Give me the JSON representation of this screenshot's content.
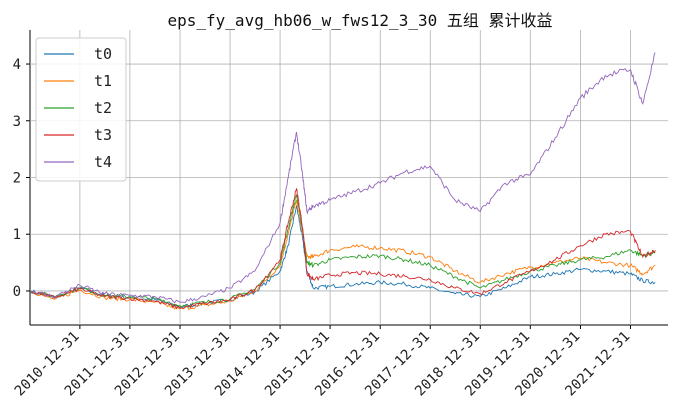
{
  "chart_data": {
    "type": "line",
    "title": "eps_fy_avg_hb06_w_fws12_3_30 五组 累计收益",
    "xlabel": "",
    "ylabel": "",
    "x_ticks": [
      "2010-12-31",
      "2011-12-31",
      "2012-12-31",
      "2013-12-31",
      "2014-12-31",
      "2015-12-31",
      "2016-12-31",
      "2017-12-31",
      "2018-12-31",
      "2019-12-31",
      "2020-12-31",
      "2021-12-31"
    ],
    "y_ticks": [
      0,
      1,
      2,
      3,
      4
    ],
    "xlim": [
      "2010-01-01",
      "2022-10-01"
    ],
    "ylim": [
      -0.6,
      4.6
    ],
    "grid": true,
    "legend_position": "top-left",
    "series": [
      {
        "name": "t0",
        "color": "#1f77b4",
        "x": [
          "2010-01-04",
          "2010-06-30",
          "2010-12-31",
          "2011-06-30",
          "2011-12-31",
          "2012-06-30",
          "2012-12-31",
          "2013-06-30",
          "2013-12-31",
          "2014-06-30",
          "2014-12-31",
          "2015-02-28",
          "2015-04-30",
          "2015-06-15",
          "2015-07-15",
          "2015-08-31",
          "2015-12-31",
          "2016-06-30",
          "2016-12-31",
          "2017-06-30",
          "2017-12-31",
          "2018-06-30",
          "2018-12-31",
          "2019-06-30",
          "2019-12-31",
          "2020-06-30",
          "2020-12-31",
          "2021-06-30",
          "2021-12-31",
          "2022-03-31",
          "2022-06-30"
        ],
        "values": [
          0.0,
          -0.12,
          0.05,
          -0.08,
          -0.12,
          -0.15,
          -0.28,
          -0.22,
          -0.15,
          -0.02,
          0.35,
          0.8,
          1.5,
          0.9,
          0.35,
          0.05,
          0.08,
          0.12,
          0.15,
          0.12,
          0.05,
          -0.05,
          -0.1,
          0.05,
          0.25,
          0.3,
          0.38,
          0.35,
          0.3,
          0.18,
          0.15
        ]
      },
      {
        "name": "t1",
        "color": "#ff7f0e",
        "x": [
          "2010-01-04",
          "2010-06-30",
          "2010-12-31",
          "2011-06-30",
          "2011-12-31",
          "2012-06-30",
          "2012-12-31",
          "2013-06-30",
          "2013-12-31",
          "2014-06-30",
          "2014-12-31",
          "2015-02-28",
          "2015-04-30",
          "2015-06-15",
          "2015-07-15",
          "2015-08-31",
          "2015-12-31",
          "2016-06-30",
          "2016-12-31",
          "2017-06-30",
          "2017-12-31",
          "2018-06-30",
          "2018-12-31",
          "2019-06-30",
          "2019-12-31",
          "2020-06-30",
          "2020-12-31",
          "2021-06-30",
          "2021-12-31",
          "2022-03-31",
          "2022-06-30"
        ],
        "values": [
          0.0,
          -0.15,
          0.02,
          -0.12,
          -0.15,
          -0.2,
          -0.32,
          -0.25,
          -0.18,
          0.0,
          0.45,
          1.0,
          1.6,
          1.0,
          0.6,
          0.6,
          0.72,
          0.78,
          0.76,
          0.7,
          0.6,
          0.35,
          0.15,
          0.3,
          0.42,
          0.5,
          0.58,
          0.5,
          0.45,
          0.3,
          0.45
        ]
      },
      {
        "name": "t2",
        "color": "#2ca02c",
        "x": [
          "2010-01-04",
          "2010-06-30",
          "2010-12-31",
          "2011-06-30",
          "2011-12-31",
          "2012-06-30",
          "2012-12-31",
          "2013-06-30",
          "2013-12-31",
          "2014-06-30",
          "2014-12-31",
          "2015-02-28",
          "2015-04-30",
          "2015-06-15",
          "2015-07-15",
          "2015-08-31",
          "2015-12-31",
          "2016-06-30",
          "2016-12-31",
          "2017-06-30",
          "2017-12-31",
          "2018-06-30",
          "2018-12-31",
          "2019-06-30",
          "2019-12-31",
          "2020-06-30",
          "2020-12-31",
          "2021-06-30",
          "2021-12-31",
          "2022-03-31",
          "2022-06-30"
        ],
        "values": [
          0.0,
          -0.1,
          0.06,
          -0.08,
          -0.1,
          -0.14,
          -0.26,
          -0.2,
          -0.14,
          0.03,
          0.5,
          1.1,
          1.7,
          1.05,
          0.5,
          0.45,
          0.55,
          0.6,
          0.62,
          0.55,
          0.45,
          0.25,
          0.05,
          0.2,
          0.35,
          0.45,
          0.55,
          0.6,
          0.72,
          0.62,
          0.68
        ]
      },
      {
        "name": "t3",
        "color": "#d62728",
        "x": [
          "2010-01-04",
          "2010-06-30",
          "2010-12-31",
          "2011-06-30",
          "2011-12-31",
          "2012-06-30",
          "2012-12-31",
          "2013-06-30",
          "2013-12-31",
          "2014-06-30",
          "2014-12-31",
          "2015-02-28",
          "2015-04-30",
          "2015-06-15",
          "2015-07-15",
          "2015-08-31",
          "2015-12-31",
          "2016-06-30",
          "2016-12-31",
          "2017-06-30",
          "2017-12-31",
          "2018-06-30",
          "2018-12-31",
          "2019-06-30",
          "2019-12-31",
          "2020-06-30",
          "2020-12-31",
          "2021-06-30",
          "2021-12-31",
          "2022-03-31",
          "2022-06-30"
        ],
        "values": [
          0.0,
          -0.12,
          0.04,
          -0.1,
          -0.13,
          -0.18,
          -0.3,
          -0.22,
          -0.16,
          0.02,
          0.55,
          1.2,
          1.8,
          1.1,
          0.3,
          0.2,
          0.28,
          0.32,
          0.3,
          0.26,
          0.2,
          0.05,
          -0.05,
          0.15,
          0.35,
          0.55,
          0.8,
          1.0,
          1.05,
          0.6,
          0.72
        ]
      },
      {
        "name": "t4",
        "color": "#9467bd",
        "x": [
          "2010-01-04",
          "2010-06-30",
          "2010-12-31",
          "2011-06-30",
          "2011-12-31",
          "2012-06-30",
          "2012-12-31",
          "2013-06-30",
          "2013-12-31",
          "2014-06-30",
          "2014-12-31",
          "2015-02-28",
          "2015-04-30",
          "2015-06-15",
          "2015-07-15",
          "2015-08-31",
          "2015-12-31",
          "2016-06-30",
          "2016-12-31",
          "2017-06-30",
          "2017-12-31",
          "2018-06-30",
          "2018-12-31",
          "2019-06-30",
          "2019-12-31",
          "2020-06-30",
          "2020-12-31",
          "2021-06-30",
          "2021-12-31",
          "2022-03-31",
          "2022-06-30"
        ],
        "values": [
          0.0,
          -0.1,
          0.1,
          -0.05,
          -0.08,
          -0.1,
          -0.2,
          -0.1,
          0.05,
          0.35,
          1.2,
          2.0,
          2.8,
          2.0,
          1.4,
          1.5,
          1.6,
          1.75,
          1.9,
          2.1,
          2.2,
          1.6,
          1.4,
          1.9,
          2.05,
          2.7,
          3.4,
          3.8,
          3.9,
          3.3,
          4.2
        ]
      }
    ]
  }
}
